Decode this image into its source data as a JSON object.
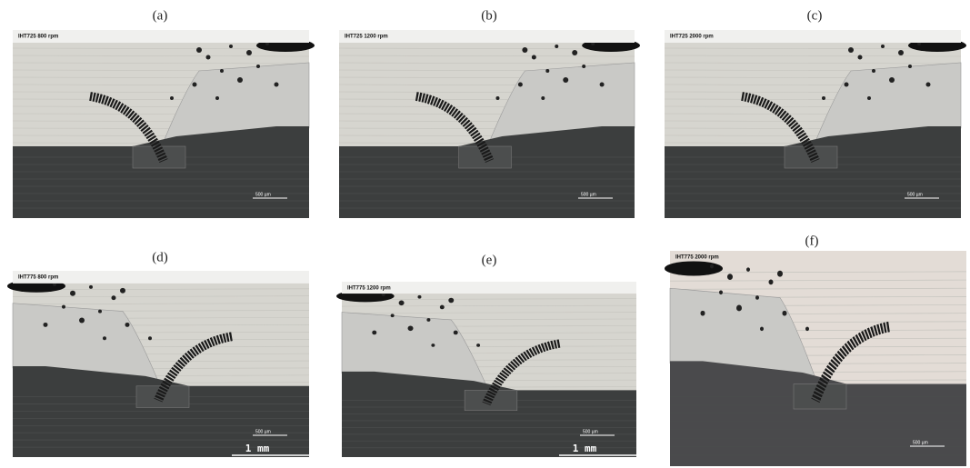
{
  "panels": [
    {
      "label": "(a)",
      "caption": "IHT725   800 rpm",
      "scale": "500 µm"
    },
    {
      "label": "(b)",
      "caption": "IHT725   1200 rpm",
      "scale": "500 µm"
    },
    {
      "label": "(c)",
      "caption": "IHT725   2000 rpm",
      "scale": "500 µm"
    },
    {
      "label": "(d)",
      "caption": "IHT775   800 rpm",
      "scale": "500 µm",
      "scale2": "1 mm"
    },
    {
      "label": "(e)",
      "caption": "IHT775   1200 rpm",
      "scale": "500 µm",
      "scale2": "1 mm"
    },
    {
      "label": "(f)",
      "caption": "IHT775   2000 rpm",
      "scale": "500 µm"
    }
  ]
}
